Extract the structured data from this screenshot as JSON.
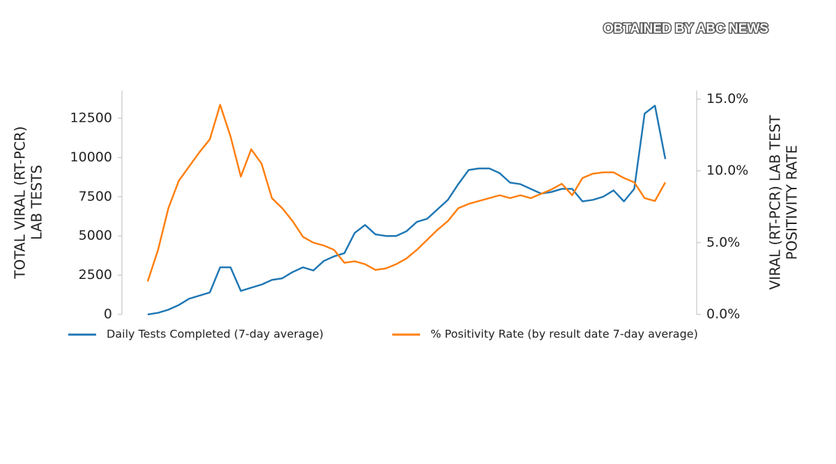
{
  "watermark": "OBTAINED BY ABC NEWS",
  "chart_data": {
    "type": "line",
    "ylabel": [
      "TOTAL VIRAL (RT-PCR)",
      "LAB TESTS"
    ],
    "y2label": [
      "VIRAL (RT-PCR) LAB TEST",
      "POSITIVITY RATE"
    ],
    "ylim": [
      0,
      14270
    ],
    "yticks": [
      0,
      2500,
      5000,
      7500,
      10000,
      12500
    ],
    "y2lim": [
      0,
      15.6
    ],
    "y2ticks": [
      {
        "value": 0,
        "label": "0.0%"
      },
      {
        "value": 5,
        "label": "5.0%"
      },
      {
        "value": 10,
        "label": "10.0%"
      },
      {
        "value": 15,
        "label": "15.0%"
      }
    ],
    "legend": "bottom",
    "series": [
      {
        "name": "Daily Tests Completed (7-day average)",
        "color": "#1f77b4",
        "values": [
          0,
          100,
          300,
          600,
          1000,
          1200,
          1400,
          3000,
          3000,
          1500,
          1700,
          1900,
          2200,
          2300,
          2700,
          3000,
          2800,
          3400,
          3700,
          3900,
          5200,
          5700,
          5100,
          5000,
          5000,
          5300,
          5900,
          6100,
          6700,
          7300,
          8300,
          9200,
          9300,
          9300,
          9000,
          8400,
          8300,
          8000,
          7700,
          7800,
          8000,
          8000,
          7200,
          7300,
          7500,
          7900,
          7200,
          8000,
          12800,
          13300,
          9900
        ]
      },
      {
        "name": "% Positivity Rate (by result date 7-day average)",
        "color": "#ff7f0e",
        "axis": "y2",
        "values": [
          2.3,
          4.5,
          7.4,
          9.3,
          10.3,
          11.3,
          12.2,
          14.6,
          12.4,
          9.6,
          11.5,
          10.5,
          8.1,
          7.4,
          6.5,
          5.4,
          5.0,
          4.8,
          4.5,
          3.6,
          3.7,
          3.5,
          3.1,
          3.2,
          3.5,
          3.9,
          4.5,
          5.2,
          5.9,
          6.5,
          7.4,
          7.7,
          7.9,
          8.1,
          8.3,
          8.1,
          8.3,
          8.1,
          8.4,
          8.7,
          9.1,
          8.3,
          9.5,
          9.8,
          9.9,
          9.9,
          9.5,
          9.2,
          8.1,
          7.9,
          9.2
        ]
      }
    ]
  }
}
